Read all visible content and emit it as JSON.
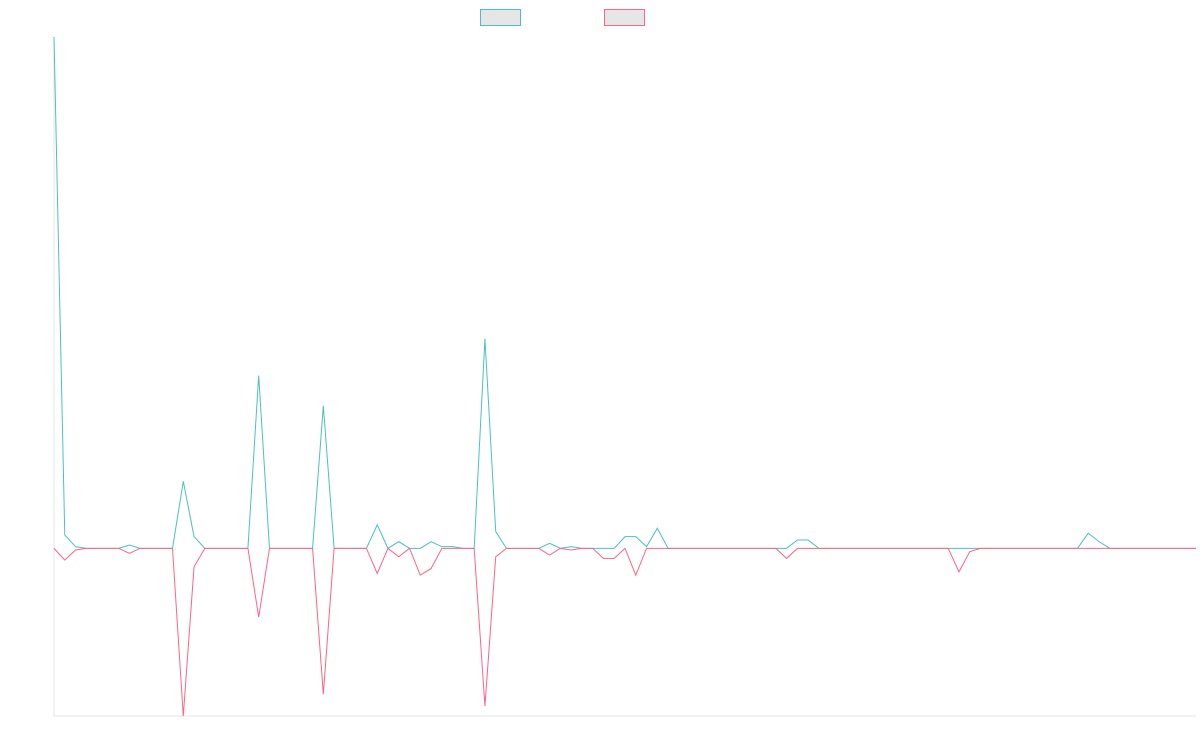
{
  "chart_data": {
    "type": "line",
    "title": "",
    "xlabel": "",
    "ylabel": "",
    "grid": false,
    "legend_position": "top-center",
    "x": [
      0,
      1,
      2,
      3,
      4,
      5,
      6,
      7,
      8,
      9,
      10,
      11,
      12,
      13,
      14,
      15,
      16,
      17,
      18,
      19,
      20,
      21,
      22,
      23,
      24,
      25,
      26,
      27,
      28,
      29,
      30,
      31,
      32,
      33,
      34,
      35,
      36,
      37,
      38,
      39,
      40,
      41,
      42,
      43,
      44,
      45,
      46,
      47,
      48,
      49,
      50,
      51,
      52,
      53,
      54,
      55,
      56,
      57,
      58,
      59,
      60,
      61,
      62,
      63,
      64,
      65,
      66,
      67,
      68,
      69,
      70,
      71,
      72,
      73,
      74,
      75,
      76,
      77,
      78,
      79,
      80,
      81,
      82,
      83,
      84,
      85,
      86,
      87,
      88,
      89,
      90,
      91,
      92,
      93,
      94,
      95,
      96,
      97,
      98,
      99,
      100,
      101,
      102,
      103,
      104,
      105,
      106
    ],
    "ylim": [
      -100,
      305
    ],
    "xlim": [
      0,
      106
    ],
    "series": [
      {
        "name": "",
        "color": "#4bc0c0",
        "values": [
          305,
          8,
          1,
          0,
          0,
          0,
          0,
          2,
          0,
          0,
          0,
          0,
          40,
          7,
          0,
          0,
          0,
          0,
          0,
          103,
          0,
          0,
          0,
          0,
          0,
          85,
          0,
          0,
          0,
          0,
          14,
          0,
          4,
          0,
          0,
          4,
          1,
          1,
          0,
          0,
          125,
          10,
          0,
          0,
          0,
          0,
          3,
          0,
          1,
          0,
          0,
          0,
          0,
          7,
          7,
          1,
          12,
          0,
          0,
          0,
          0,
          0,
          0,
          0,
          0,
          0,
          0,
          0,
          0,
          5,
          5,
          0,
          0,
          0,
          0,
          0,
          0,
          0,
          0,
          0,
          0,
          0,
          0,
          0,
          0,
          0,
          0,
          0,
          0,
          0,
          0,
          0,
          0,
          0,
          0,
          0,
          9,
          4,
          0,
          0,
          0,
          0,
          0,
          0,
          0,
          0,
          0
        ]
      },
      {
        "name": "",
        "color": "#ff6384",
        "values": [
          0,
          -7,
          -1,
          0,
          0,
          0,
          0,
          -3,
          0,
          0,
          0,
          0,
          -100,
          -11,
          0,
          0,
          0,
          0,
          0,
          -41,
          0,
          0,
          0,
          0,
          0,
          -87,
          0,
          0,
          0,
          0,
          -15,
          0,
          -5,
          0,
          -16,
          -12,
          0,
          0,
          0,
          0,
          -94,
          -5,
          0,
          0,
          0,
          0,
          -4,
          0,
          -1,
          0,
          0,
          -6,
          -6,
          0,
          -16,
          0,
          0,
          0,
          0,
          0,
          0,
          0,
          0,
          0,
          0,
          0,
          0,
          0,
          -6,
          0,
          0,
          0,
          0,
          0,
          0,
          0,
          0,
          0,
          0,
          0,
          0,
          0,
          0,
          0,
          -14,
          -2,
          0,
          0,
          0,
          0,
          0,
          0,
          0,
          0,
          0,
          0,
          0,
          0,
          0,
          0,
          0,
          0,
          0,
          0,
          0,
          0,
          0
        ]
      }
    ]
  }
}
